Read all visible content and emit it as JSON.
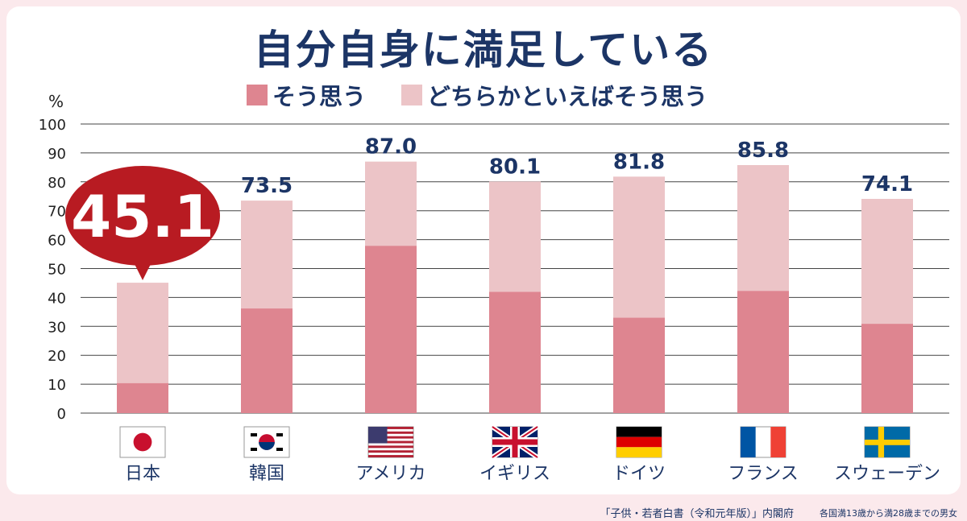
{
  "title": "自分自身に満足している",
  "legend": [
    {
      "label": "そう思う",
      "color": "#de8590"
    },
    {
      "label": "どちらかといえばそう思う",
      "color": "#ecc4c7"
    }
  ],
  "unit_label": "%",
  "callout": "45.1",
  "source": "「子供・若者白書（令和元年版）」内閣府",
  "note": "各国満13歳から満28歳までの男女",
  "chart_data": {
    "type": "bar",
    "stacked": true,
    "categories": [
      "日本",
      "韓国",
      "アメリカ",
      "イギリス",
      "ドイツ",
      "フランス",
      "スウェーデン"
    ],
    "flag_icons": [
      "japan-flag-icon",
      "korea-flag-icon",
      "usa-flag-icon",
      "uk-flag-icon",
      "germany-flag-icon",
      "france-flag-icon",
      "sweden-flag-icon"
    ],
    "series": [
      {
        "name": "そう思う",
        "values": [
          10.4,
          36.2,
          57.9,
          42.0,
          33.0,
          42.3,
          30.9
        ]
      },
      {
        "name": "どちらかといえばそう思う",
        "values": [
          34.7,
          37.3,
          29.1,
          38.1,
          48.8,
          43.5,
          43.2
        ]
      }
    ],
    "totals": [
      "45.1",
      "73.5",
      "87.0",
      "80.1",
      "81.8",
      "85.8",
      "74.1"
    ],
    "ylim": [
      0,
      100
    ],
    "yticks": [
      0,
      10,
      20,
      30,
      40,
      50,
      60,
      70,
      80,
      90,
      100
    ],
    "grid": true
  }
}
